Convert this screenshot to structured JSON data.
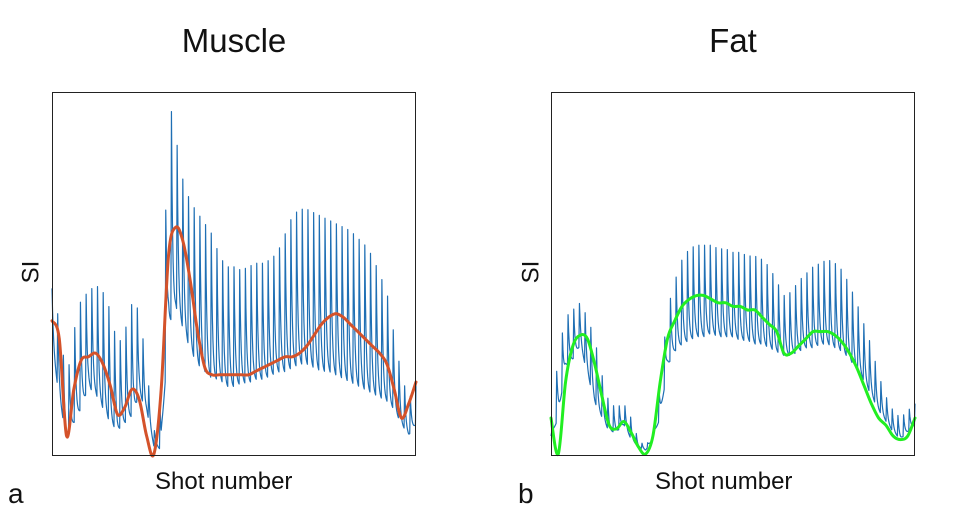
{
  "chart_data": [
    {
      "type": "line",
      "panel_label": "a",
      "title": "Muscle",
      "xlabel": "Shot number",
      "ylabel": "SI",
      "xlim": [
        0,
        100
      ],
      "ylim": [
        0,
        100
      ],
      "grid": false,
      "ticks_shown": false,
      "series": [
        {
          "color": "#1f6fb4",
          "style": "raw-oscillating",
          "x": [
            0,
            2,
            4,
            6,
            8,
            10,
            12,
            14,
            16,
            18,
            20,
            22,
            24,
            26,
            28,
            30,
            32,
            34,
            36,
            38,
            40,
            42,
            44,
            46,
            48,
            50,
            52,
            54,
            56,
            58,
            60,
            62,
            64,
            66,
            68,
            70,
            72,
            74,
            76,
            78,
            80,
            82,
            84,
            86,
            88,
            90,
            92,
            94,
            96,
            98,
            100
          ],
          "upper": [
            46,
            37,
            20,
            34,
            43,
            45,
            47,
            45,
            40,
            30,
            34,
            42,
            40,
            24,
            6,
            14,
            100,
            88,
            76,
            70,
            67,
            64,
            61,
            55,
            52,
            52,
            51,
            52,
            53,
            53,
            54,
            56,
            61,
            66,
            68,
            68,
            67,
            66,
            65,
            64,
            63,
            62,
            60,
            58,
            55,
            50,
            45,
            33,
            22,
            15,
            20
          ],
          "lower": [
            30,
            15,
            4,
            8,
            12,
            18,
            16,
            12,
            8,
            6,
            8,
            10,
            16,
            12,
            2,
            1,
            34,
            40,
            34,
            28,
            24,
            22,
            20,
            20,
            18,
            18,
            19,
            19,
            20,
            20,
            21,
            22,
            22,
            23,
            24,
            24,
            23,
            22,
            22,
            21,
            20,
            19,
            18,
            17,
            16,
            15,
            14,
            12,
            8,
            5,
            8
          ]
        },
        {
          "color": "#d4522a",
          "style": "smoothed",
          "x": [
            0,
            2,
            4,
            6,
            8,
            10,
            12,
            14,
            16,
            18,
            20,
            22,
            24,
            26,
            28,
            30,
            32,
            34,
            36,
            38,
            40,
            42,
            44,
            46,
            48,
            50,
            52,
            54,
            56,
            58,
            60,
            62,
            64,
            66,
            68,
            70,
            72,
            74,
            76,
            78,
            80,
            82,
            84,
            86,
            88,
            90,
            92,
            94,
            96,
            98,
            100
          ],
          "values": [
            37,
            32,
            5,
            18,
            26,
            27,
            28,
            25,
            19,
            11,
            13,
            18,
            15,
            5,
            0,
            18,
            55,
            63,
            59,
            48,
            34,
            24,
            22,
            22,
            22,
            22,
            22,
            22,
            23,
            24,
            25,
            26,
            27,
            27,
            28,
            30,
            33,
            36,
            38,
            39,
            38,
            36,
            34,
            32,
            30,
            28,
            25,
            18,
            10,
            14,
            20
          ]
        }
      ]
    },
    {
      "type": "line",
      "panel_label": "b",
      "title": "Fat",
      "xlabel": "Shot number",
      "ylabel": "SI",
      "xlim": [
        0,
        100
      ],
      "ylim": [
        0,
        100
      ],
      "grid": false,
      "ticks_shown": false,
      "series": [
        {
          "color": "#1f6fb4",
          "style": "raw-oscillating",
          "x": [
            0,
            2,
            4,
            6,
            8,
            10,
            12,
            14,
            16,
            18,
            20,
            22,
            24,
            26,
            28,
            30,
            32,
            34,
            36,
            38,
            40,
            42,
            44,
            46,
            48,
            50,
            52,
            54,
            56,
            58,
            60,
            62,
            64,
            66,
            68,
            70,
            72,
            74,
            76,
            78,
            80,
            82,
            84,
            86,
            88,
            90,
            92,
            94,
            96,
            98,
            100
          ],
          "upper": [
            5,
            28,
            38,
            40,
            42,
            38,
            32,
            22,
            14,
            13,
            14,
            10,
            4,
            2,
            6,
            20,
            40,
            48,
            54,
            57,
            58,
            58,
            58,
            57,
            57,
            56,
            56,
            55,
            55,
            54,
            52,
            48,
            44,
            45,
            48,
            50,
            52,
            53,
            54,
            53,
            51,
            47,
            42,
            36,
            30,
            22,
            16,
            12,
            10,
            12,
            14
          ],
          "lower": [
            4,
            10,
            24,
            26,
            30,
            22,
            14,
            10,
            6,
            6,
            8,
            4,
            2,
            1,
            4,
            10,
            24,
            28,
            30,
            31,
            32,
            32,
            33,
            32,
            32,
            32,
            31,
            31,
            30,
            30,
            29,
            28,
            27,
            27,
            28,
            29,
            29,
            30,
            30,
            29,
            28,
            26,
            23,
            20,
            16,
            12,
            9,
            6,
            4,
            6,
            8
          ]
        },
        {
          "color": "#22ee22",
          "style": "smoothed",
          "x": [
            0,
            2,
            4,
            6,
            8,
            10,
            12,
            14,
            16,
            18,
            20,
            22,
            24,
            26,
            28,
            30,
            32,
            34,
            36,
            38,
            40,
            42,
            44,
            46,
            48,
            50,
            52,
            54,
            56,
            58,
            60,
            62,
            64,
            66,
            68,
            70,
            72,
            74,
            76,
            78,
            80,
            82,
            84,
            86,
            88,
            90,
            92,
            94,
            96,
            98,
            100
          ],
          "values": [
            10,
            0,
            20,
            30,
            33,
            32,
            25,
            16,
            8,
            7,
            9,
            6,
            2,
            0,
            5,
            20,
            32,
            37,
            41,
            43,
            44,
            44,
            43,
            42,
            42,
            41,
            41,
            40,
            40,
            38,
            36,
            34,
            28,
            28,
            30,
            32,
            34,
            34,
            34,
            33,
            31,
            28,
            24,
            19,
            14,
            10,
            8,
            5,
            4,
            5,
            10
          ]
        }
      ]
    }
  ]
}
